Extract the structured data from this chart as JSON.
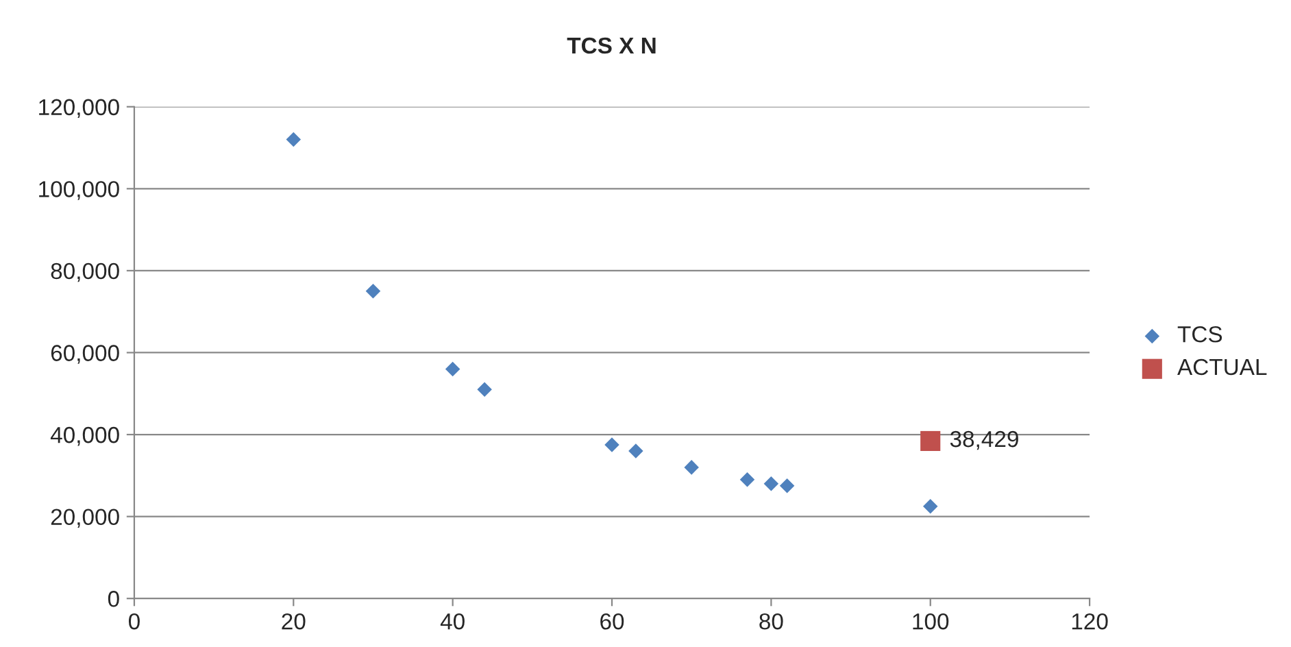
{
  "chart_data": {
    "type": "scatter",
    "title": "TCS X N",
    "series": [
      {
        "name": "TCS",
        "color": "#4f81bd",
        "marker": "diamond",
        "x": [
          20,
          30,
          40,
          44,
          60,
          63,
          70,
          77,
          80,
          82,
          100
        ],
        "values": [
          112000,
          75000,
          56000,
          51000,
          37500,
          36000,
          32000,
          29000,
          28000,
          27500,
          22500
        ]
      },
      {
        "name": "ACTUAL",
        "color": "#c0504d",
        "marker": "square",
        "x": [
          100
        ],
        "values": [
          38429
        ],
        "value_labels": [
          "38,429"
        ]
      }
    ],
    "xlim": [
      0,
      120
    ],
    "xticks": [
      0,
      20,
      40,
      60,
      80,
      100,
      120
    ],
    "ylim": [
      0,
      120000
    ],
    "yticks": [
      0,
      {
        "value": 20000,
        "label": "20,000"
      },
      {
        "value": 40000,
        "label": "40,000"
      },
      {
        "value": 60000,
        "label": "60,000"
      },
      {
        "value": 80000,
        "label": "80,000"
      },
      {
        "value": 100000,
        "label": "100,000"
      },
      {
        "value": 120000,
        "label": "120,000"
      }
    ],
    "grid": "y",
    "legend": "right"
  }
}
